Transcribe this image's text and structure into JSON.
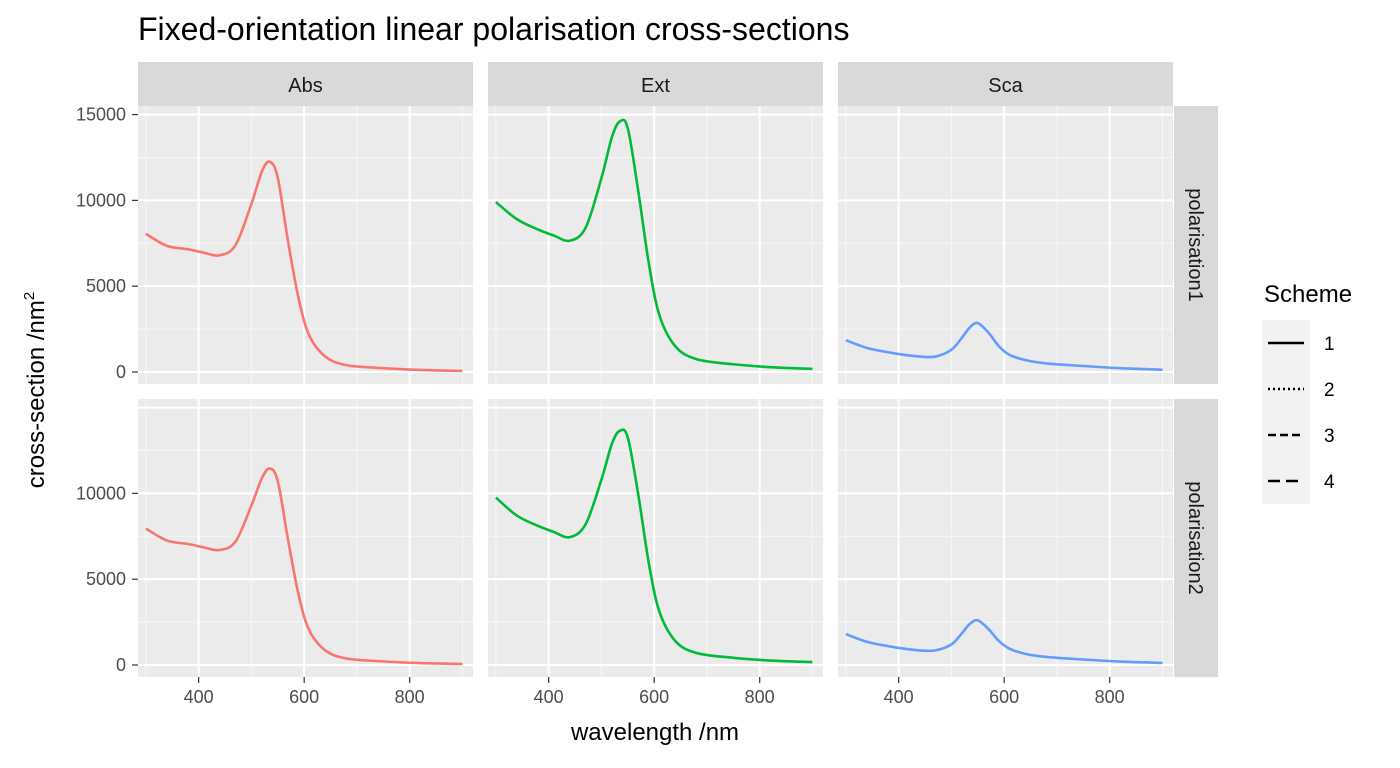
{
  "chart_data": {
    "type": "line",
    "title": "Fixed-orientation linear polarisation cross-sections",
    "xlabel": "wavelength /nm",
    "ylabel_main": "cross-section /nm",
    "ylabel_sup": "2",
    "xlim": [
      285,
      920
    ],
    "xticks": [
      400,
      600,
      800
    ],
    "ylim": [
      -700,
      15500
    ],
    "yticks": [
      0,
      5000,
      10000,
      15000
    ],
    "grid": true,
    "facet_cols": [
      "Abs",
      "Ext",
      "Sca"
    ],
    "facet_rows": [
      "polarisation1",
      "polarisation2"
    ],
    "colors": {
      "Abs": "#F8766D",
      "Ext": "#00BA38",
      "Sca": "#619CFF"
    },
    "legend": {
      "title": "Scheme",
      "position": "right",
      "entries": [
        "1",
        "2",
        "3",
        "4"
      ],
      "dash": [
        "",
        "2,3",
        "8,4",
        "12,6"
      ]
    },
    "x": [
      300,
      340,
      380,
      410,
      440,
      470,
      500,
      520,
      535,
      550,
      570,
      590,
      610,
      640,
      680,
      750,
      820,
      900
    ],
    "series": [
      {
        "col": "Abs",
        "row": "polarisation1",
        "values": [
          8050,
          7350,
          7150,
          6950,
          6800,
          7400,
          9800,
          11700,
          12250,
          11300,
          7500,
          4200,
          2100,
          900,
          400,
          220,
          120,
          60
        ]
      },
      {
        "col": "Ext",
        "row": "polarisation1",
        "values": [
          9900,
          8900,
          8300,
          7950,
          7650,
          8400,
          11300,
          13700,
          14600,
          14200,
          10500,
          6300,
          3300,
          1500,
          750,
          450,
          280,
          180
        ]
      },
      {
        "col": "Sca",
        "row": "polarisation1",
        "values": [
          1850,
          1400,
          1150,
          1000,
          900,
          900,
          1300,
          2000,
          2600,
          2850,
          2300,
          1500,
          1000,
          700,
          500,
          350,
          220,
          130
        ]
      },
      {
        "col": "Abs",
        "row": "polarisation2",
        "values": [
          7950,
          7250,
          7050,
          6850,
          6700,
          7200,
          9300,
          10900,
          11450,
          10700,
          7200,
          4000,
          2000,
          850,
          380,
          210,
          110,
          60
        ]
      },
      {
        "col": "Ext",
        "row": "polarisation2",
        "values": [
          9750,
          8700,
          8100,
          7750,
          7450,
          8200,
          10800,
          12900,
          13650,
          13250,
          9900,
          5900,
          3100,
          1400,
          700,
          420,
          260,
          170
        ]
      },
      {
        "col": "Sca",
        "row": "polarisation2",
        "values": [
          1800,
          1350,
          1100,
          950,
          850,
          850,
          1200,
          1850,
          2400,
          2600,
          2100,
          1400,
          950,
          650,
          470,
          320,
          200,
          120
        ]
      }
    ]
  }
}
